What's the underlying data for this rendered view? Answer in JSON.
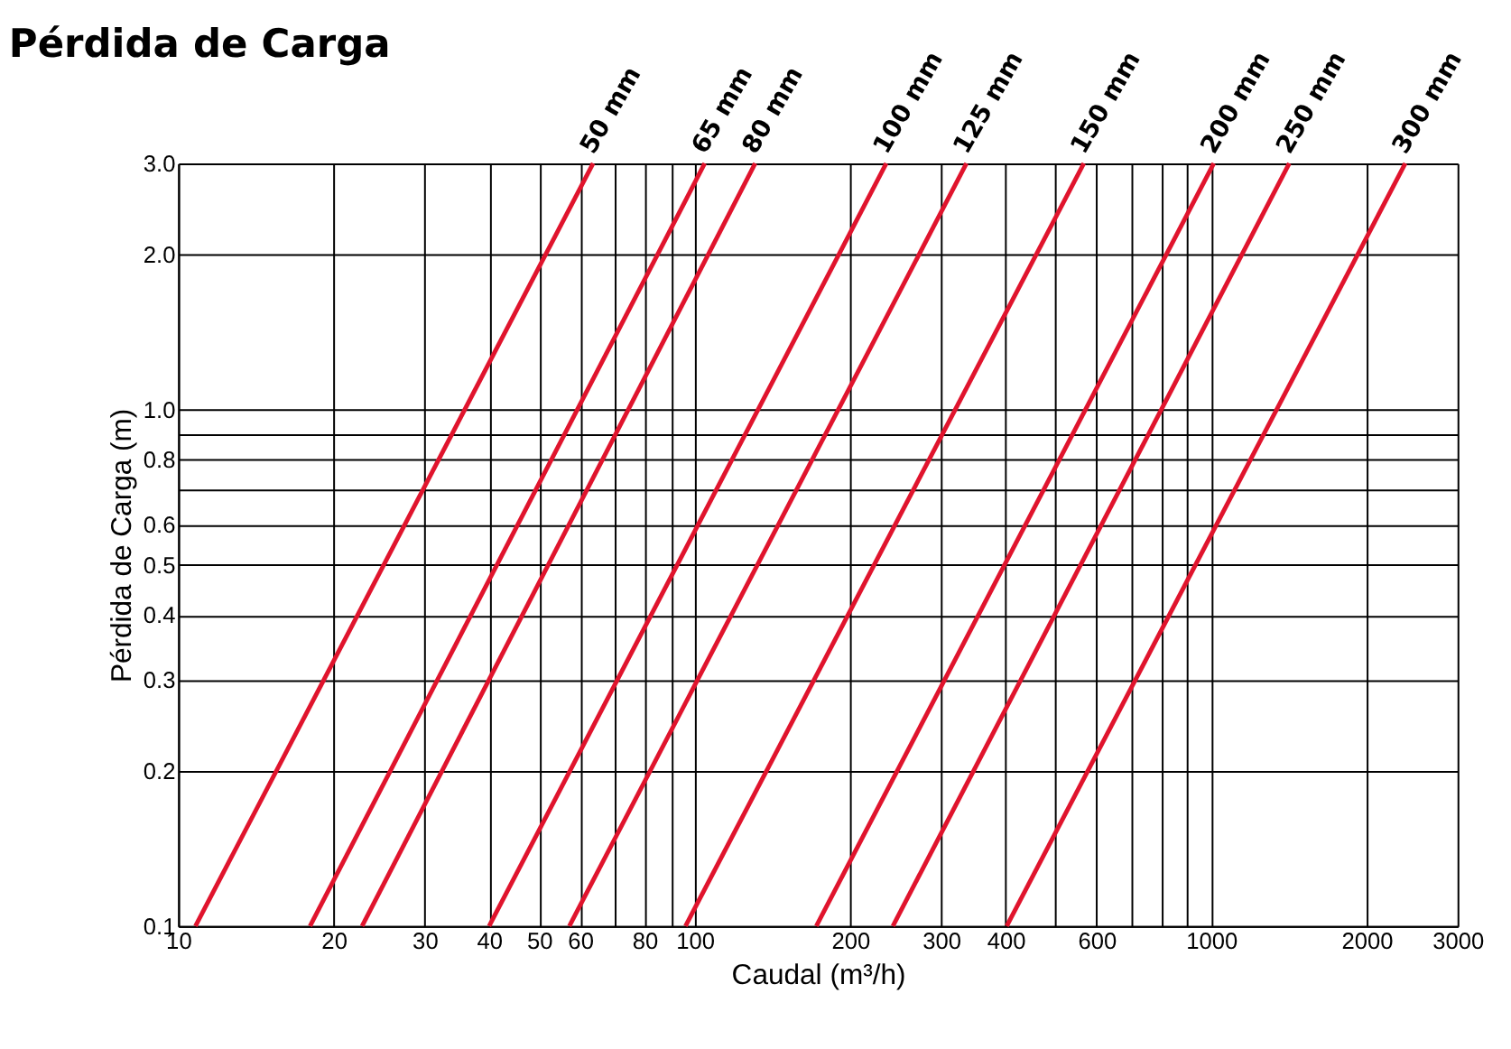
{
  "chart_data": {
    "type": "line",
    "title": "Pérdida de Carga",
    "xlabel": "Caudal (m³/h)",
    "ylabel": "Pérdida de Carga (m)",
    "log": "xy",
    "grid": true,
    "legend": false,
    "marker": "none",
    "line_style": "solid",
    "xlim": [
      10,
      3000
    ],
    "ylim": [
      0.1,
      3.0
    ],
    "xticks": [
      10,
      20,
      30,
      40,
      50,
      60,
      {
        "value": 70,
        "label": null
      },
      80,
      {
        "value": 90,
        "label": null
      },
      100,
      200,
      300,
      400,
      {
        "value": 500,
        "label": null
      },
      600,
      {
        "value": 700,
        "label": null
      },
      {
        "value": 800,
        "label": null
      },
      {
        "value": 900,
        "label": null
      },
      1000,
      2000,
      3000
    ],
    "yticks": [
      0.1,
      0.2,
      0.3,
      0.4,
      0.5,
      0.6,
      {
        "value": 0.7,
        "label": null
      },
      0.8,
      {
        "value": 0.9,
        "label": null
      },
      {
        "value": 1,
        "label": "1.0"
      },
      {
        "value": 2,
        "label": "2.0"
      },
      {
        "value": 3,
        "label": "3.0"
      }
    ],
    "series": [
      {
        "name": "50 mm",
        "color": "#e0142d",
        "x": [
          10.8,
          63.6
        ],
        "values": [
          0.1,
          3.0
        ]
      },
      {
        "name": "65 mm",
        "color": "#e0142d",
        "x": [
          18.0,
          104.6
        ],
        "values": [
          0.1,
          3.0
        ]
      },
      {
        "name": "80 mm",
        "color": "#e0142d",
        "x": [
          22.7,
          131
        ],
        "values": [
          0.1,
          3.0
        ]
      },
      {
        "name": "100 mm",
        "color": "#e0142d",
        "x": [
          40,
          235
        ],
        "values": [
          0.1,
          3.0
        ]
      },
      {
        "name": "125 mm",
        "color": "#e0142d",
        "x": [
          57.2,
          336
        ],
        "values": [
          0.1,
          3.0
        ]
      },
      {
        "name": "150 mm",
        "color": "#e0142d",
        "x": [
          96,
          567
        ],
        "values": [
          0.1,
          3.0
        ]
      },
      {
        "name": "200 mm",
        "color": "#e0142d",
        "x": [
          172,
          1012
        ],
        "values": [
          0.1,
          3.0
        ]
      },
      {
        "name": "250 mm",
        "color": "#e0142d",
        "x": [
          242,
          1417
        ],
        "values": [
          0.1,
          3.0
        ]
      },
      {
        "name": "300 mm",
        "color": "#e0142d",
        "x": [
          402,
          2377
        ],
        "values": [
          0.1,
          3.0
        ]
      }
    ]
  }
}
